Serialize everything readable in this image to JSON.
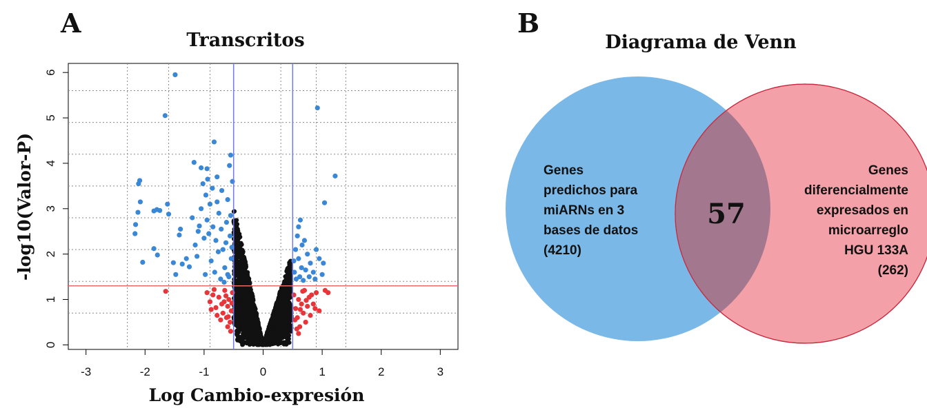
{
  "panel_a": {
    "label": "A",
    "title": "Transcritos",
    "xlabel": "Log Cambio-expresión",
    "ylabel": "-log10(Valor-P)",
    "xticks": [
      "-3",
      "-2",
      "-1",
      "0",
      "1",
      "2",
      "3"
    ],
    "yticks": [
      "0",
      "1",
      "2",
      "3",
      "4",
      "5",
      "6"
    ]
  },
  "panel_b": {
    "label": "B",
    "title": "Diagrama de Venn",
    "left_label": [
      "Genes",
      "predichos para",
      "miARNs en 3",
      "bases de datos",
      "(4210)"
    ],
    "right_label": [
      "Genes",
      "diferencialmente",
      "expresados en",
      "microarreglo",
      "HGU 133A",
      "(262)"
    ],
    "intersection": "57"
  },
  "chart_data": [
    {
      "type": "scatter",
      "title": "Transcritos",
      "xlabel": "Log Cambio-expresión",
      "ylabel": "-log10(Valor-P)",
      "xlim": [
        -3.3,
        3.3
      ],
      "ylim": [
        -0.1,
        6.2
      ],
      "grid": true,
      "fold_change_thresholds": [
        -0.5,
        0.5
      ],
      "pvalue_threshold": 1.3,
      "colors": {
        "significant": "#3a87d6",
        "fold_only": "#e8353a",
        "not_significant": "#111111",
        "threshold_v": "#6f7cf0",
        "threshold_h": "#e86a6a"
      },
      "series": [
        {
          "name": "",
          "color_key": "significant",
          "points": [
            [
              -1.49,
              5.95
            ],
            [
              -1.66,
              5.05
            ],
            [
              -0.83,
              4.47
            ],
            [
              -0.55,
              4.18
            ],
            [
              -0.57,
              3.95
            ],
            [
              -1.17,
              4.02
            ],
            [
              -1.05,
              3.9
            ],
            [
              -0.95,
              3.88
            ],
            [
              -0.78,
              3.7
            ],
            [
              -2.09,
              3.62
            ],
            [
              -2.11,
              3.55
            ],
            [
              -2.08,
              3.15
            ],
            [
              -2.12,
              2.92
            ],
            [
              -2.16,
              2.65
            ],
            [
              -2.17,
              2.45
            ],
            [
              -2.04,
              1.82
            ],
            [
              -1.8,
              2.98
            ],
            [
              -1.85,
              2.95
            ],
            [
              -1.75,
              2.96
            ],
            [
              -1.62,
              3.1
            ],
            [
              -1.6,
              2.88
            ],
            [
              -1.4,
              2.55
            ],
            [
              -1.42,
              2.42
            ],
            [
              -1.85,
              2.12
            ],
            [
              -1.79,
              1.98
            ],
            [
              -1.52,
              1.81
            ],
            [
              -1.48,
              1.55
            ],
            [
              -1.37,
              1.78
            ],
            [
              -1.3,
              1.9
            ],
            [
              -1.25,
              1.72
            ],
            [
              -1.15,
              2.2
            ],
            [
              -1.1,
              2.5
            ],
            [
              -1.2,
              2.8
            ],
            [
              -1.05,
              3.0
            ],
            [
              -0.97,
              3.3
            ],
            [
              -0.9,
              3.1
            ],
            [
              -0.85,
              2.6
            ],
            [
              -0.8,
              2.3
            ],
            [
              -0.75,
              2.9
            ],
            [
              -0.7,
              3.4
            ],
            [
              -0.68,
              2.1
            ],
            [
              -0.65,
              1.7
            ],
            [
              -0.62,
              2.7
            ],
            [
              -0.6,
              3.2
            ],
            [
              -0.58,
              1.5
            ],
            [
              -0.56,
              2.4
            ],
            [
              -0.54,
              1.9
            ],
            [
              -0.52,
              3.6
            ],
            [
              -0.95,
              2.75
            ],
            [
              -1.0,
              2.35
            ],
            [
              -0.88,
              1.85
            ],
            [
              -0.82,
              1.6
            ],
            [
              -0.72,
              1.45
            ],
            [
              -0.66,
              1.38
            ],
            [
              -0.76,
              2.05
            ],
            [
              -0.92,
              2.45
            ],
            [
              -1.08,
              2.62
            ],
            [
              -1.12,
              1.95
            ],
            [
              -0.98,
              1.55
            ],
            [
              -0.6,
              1.55
            ],
            [
              -0.63,
              2.25
            ],
            [
              -0.71,
              2.55
            ],
            [
              -0.78,
              3.15
            ],
            [
              -0.86,
              3.45
            ],
            [
              -0.94,
              3.65
            ],
            [
              -1.02,
              3.55
            ],
            [
              -0.55,
              2.85
            ],
            [
              -0.53,
              2.15
            ],
            [
              0.92,
              5.22
            ],
            [
              1.22,
              3.72
            ],
            [
              1.04,
              3.13
            ],
            [
              0.63,
              2.75
            ],
            [
              0.58,
              2.4
            ],
            [
              0.55,
              2.1
            ],
            [
              0.6,
              1.9
            ],
            [
              0.65,
              1.7
            ],
            [
              0.7,
              2.3
            ],
            [
              0.75,
              2.0
            ],
            [
              0.8,
              1.8
            ],
            [
              0.85,
              1.6
            ],
            [
              0.9,
              2.1
            ],
            [
              0.95,
              1.9
            ],
            [
              1.0,
              1.55
            ],
            [
              0.53,
              1.6
            ],
            [
              0.56,
              1.45
            ],
            [
              0.62,
              1.5
            ],
            [
              0.68,
              1.42
            ],
            [
              0.72,
              1.65
            ],
            [
              0.78,
              1.5
            ],
            [
              0.88,
              1.45
            ],
            [
              1.02,
              1.8
            ],
            [
              0.6,
              2.6
            ],
            [
              0.66,
              2.2
            ],
            [
              0.52,
              1.85
            ]
          ]
        },
        {
          "name": "",
          "color_key": "fold_only",
          "points": [
            [
              -1.65,
              1.18
            ],
            [
              -0.95,
              1.15
            ],
            [
              -0.9,
              0.95
            ],
            [
              -0.85,
              1.1
            ],
            [
              -0.8,
              0.82
            ],
            [
              -0.75,
              1.05
            ],
            [
              -0.7,
              0.9
            ],
            [
              -0.68,
              0.7
            ],
            [
              -0.65,
              1.2
            ],
            [
              -0.62,
              0.6
            ],
            [
              -0.6,
              0.85
            ],
            [
              -0.58,
              1.0
            ],
            [
              -0.56,
              0.5
            ],
            [
              -0.54,
              0.75
            ],
            [
              -0.52,
              1.15
            ],
            [
              -0.6,
              0.4
            ],
            [
              -0.55,
              0.3
            ],
            [
              -0.72,
              0.55
            ],
            [
              -0.78,
              0.65
            ],
            [
              -0.88,
              0.78
            ],
            [
              -0.66,
              0.95
            ],
            [
              -0.59,
              0.62
            ],
            [
              -0.53,
              0.92
            ],
            [
              -0.63,
              1.08
            ],
            [
              -0.83,
              1.22
            ],
            [
              0.52,
              1.1
            ],
            [
              0.55,
              0.8
            ],
            [
              0.58,
              0.6
            ],
            [
              0.6,
              1.0
            ],
            [
              0.62,
              0.4
            ],
            [
              0.65,
              0.9
            ],
            [
              0.68,
              0.7
            ],
            [
              0.7,
              1.2
            ],
            [
              0.72,
              0.5
            ],
            [
              0.75,
              0.85
            ],
            [
              0.78,
              1.05
            ],
            [
              0.8,
              0.65
            ],
            [
              0.85,
              0.9
            ],
            [
              0.9,
              1.15
            ],
            [
              0.95,
              0.75
            ],
            [
              1.05,
              1.2
            ],
            [
              1.1,
              1.15
            ],
            [
              0.57,
              0.35
            ],
            [
              0.54,
              0.55
            ],
            [
              0.63,
              0.78
            ],
            [
              0.67,
              1.18
            ],
            [
              0.73,
              0.98
            ],
            [
              0.82,
              1.1
            ],
            [
              0.88,
              0.8
            ],
            [
              0.6,
              0.25
            ]
          ]
        },
        {
          "name": "",
          "color_key": "not_significant",
          "points": [
            [
              0.42,
              0.5
            ],
            [
              0.45,
              0.75
            ]
          ]
        }
      ]
    },
    {
      "type": "venn",
      "title": "Diagrama de Venn",
      "sets": [
        {
          "label": "Genes predichos para miARNs en 3 bases de datos",
          "size": 4210,
          "color": "#7ab8e8"
        },
        {
          "label": "Genes diferencialmente expresados en microarreglo HGU 133A",
          "size": 262,
          "color": "#f4a0a8"
        }
      ],
      "intersection": 57,
      "intersection_color": "#a3778e"
    }
  ]
}
